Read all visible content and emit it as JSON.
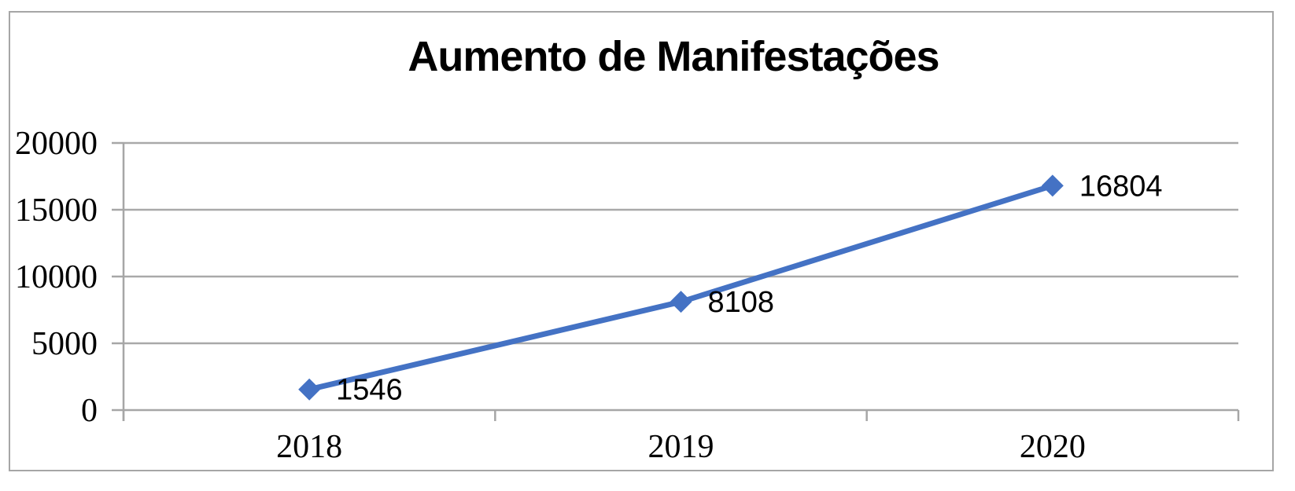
{
  "chart_data": {
    "type": "line",
    "title": "Aumento de Manifestações",
    "categories": [
      "2018",
      "2019",
      "2020"
    ],
    "series": [
      {
        "values": [
          1546,
          8108,
          16804
        ],
        "data_labels": [
          "1546",
          "8108",
          "16804"
        ],
        "color": "#4472C4",
        "marker": "diamond"
      }
    ],
    "xlabel": "",
    "ylabel": "",
    "y_ticks": [
      0,
      5000,
      10000,
      15000,
      20000
    ],
    "y_tick_labels": [
      "0",
      "5000",
      "10000",
      "15000",
      "20000"
    ],
    "ylim": [
      0,
      20000
    ],
    "grid": "horizontal",
    "legend": "none"
  },
  "style": {
    "line_color": "#4472C4",
    "marker_color": "#4472C4",
    "gridline_color": "#a9a9a9",
    "axis_color": "#a6a6a6",
    "border_color": "#a6a6a6",
    "text_color": "#000000",
    "background": "#ffffff"
  }
}
